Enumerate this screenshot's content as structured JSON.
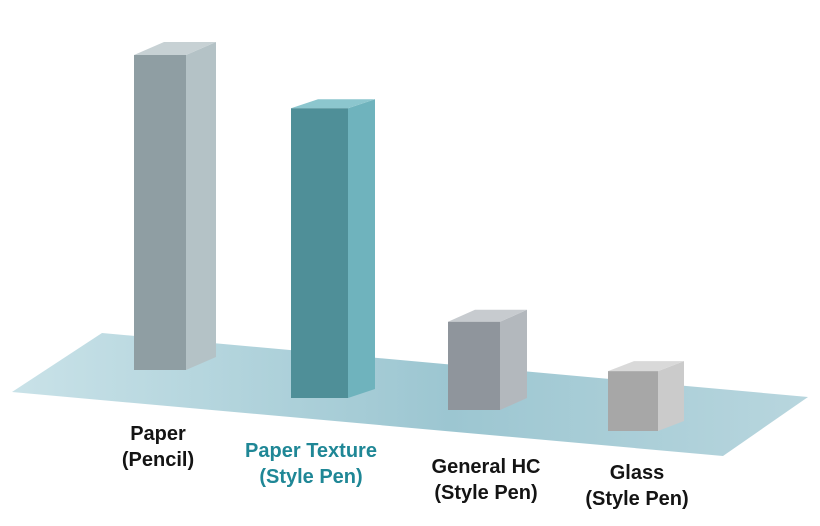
{
  "chart_data": {
    "type": "bar",
    "style": "3d",
    "title": "",
    "xlabel": "",
    "ylabel": "",
    "grid": false,
    "legend": "none",
    "ylim": [
      0,
      100
    ],
    "categories": [
      {
        "line1": "Paper",
        "line2": "(Pencil)",
        "highlight": false
      },
      {
        "line1": "Paper Texture",
        "line2": "(Style Pen)",
        "highlight": true
      },
      {
        "line1": "General HC",
        "line2": "(Style Pen)",
        "highlight": false
      },
      {
        "line1": "Glass",
        "line2": "(Style Pen)",
        "highlight": false
      }
    ],
    "values": [
      100,
      92,
      28,
      19
    ]
  },
  "colors": {
    "floor": "#a9cfd9",
    "highlight_text": "#1f8796",
    "label_text": "#141414",
    "bars": [
      {
        "front": "#8f9ea3",
        "side": "#b4c2c6",
        "top": "#c7d1d4"
      },
      {
        "front": "#4f8f98",
        "side": "#6fb3bd",
        "top": "#8cc6ce"
      },
      {
        "front": "#8f959c",
        "side": "#b3b8bd",
        "top": "#c7cbcf"
      },
      {
        "front": "#a7a7a7",
        "side": "#cbcbcb",
        "top": "#d9d9d9"
      }
    ]
  }
}
